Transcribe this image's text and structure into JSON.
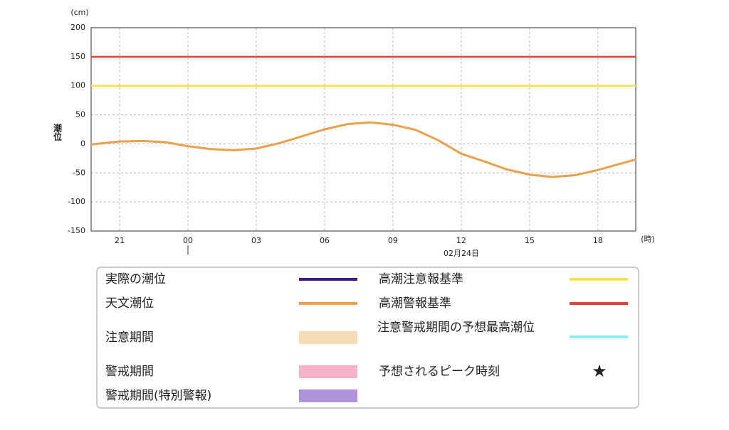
{
  "chart_data": {
    "type": "line",
    "y_unit": "(cm)",
    "x_unit": "(時)",
    "ylabel": "潮位",
    "date_label": "02月24日",
    "xlim": [
      19.75,
      43.66
    ],
    "xticks": [
      21,
      {
        "value": 24,
        "label": "00"
      },
      {
        "value": 27,
        "label": "03"
      },
      {
        "value": 30,
        "label": "06"
      },
      {
        "value": 33,
        "label": "09"
      },
      {
        "value": 36,
        "label": "12"
      },
      {
        "value": 39,
        "label": "15"
      },
      {
        "value": 42,
        "label": "18"
      }
    ],
    "ylim": [
      -150,
      200
    ],
    "yticks": [
      -150,
      -100,
      -50,
      0,
      50,
      100,
      150,
      200
    ],
    "grid": true,
    "x": [
      19.75,
      21,
      22,
      23,
      24,
      25,
      26,
      27,
      28,
      29,
      30,
      31,
      32,
      33,
      34,
      35,
      36,
      37,
      38,
      39,
      40,
      41,
      42,
      43,
      43.66
    ],
    "series": [
      {
        "name": "天文潮位",
        "color": "#eba04a",
        "values": [
          -1,
          4,
          5,
          3,
          -4,
          -9,
          -11,
          -8,
          1,
          13,
          25,
          34,
          37,
          33,
          24,
          6,
          -17,
          -30,
          -44,
          -53,
          -57,
          -54,
          -45,
          -34,
          -27
        ]
      }
    ],
    "hlines": [
      {
        "name": "高潮注意報基準",
        "color": "#f2e34c",
        "value": 100
      },
      {
        "name": "高潮警報基準",
        "color": "#e0452f",
        "value": 150
      }
    ],
    "legend_items": [
      {
        "name": "実際の潮位",
        "color": "#3a1a8c",
        "symbol": "line"
      },
      {
        "name": "注意期間",
        "color": "#f7dcb8",
        "symbol": "band"
      },
      {
        "name": "警戒期間",
        "color": "#f4b3c8",
        "symbol": "band"
      },
      {
        "name": "警戒期間(特別警報)",
        "color": "#ae94dc",
        "symbol": "band"
      },
      {
        "name": "注意警戒期間の予想最高潮位",
        "color": "#7ef0f4",
        "symbol": "line"
      },
      {
        "name": "予想されるピーク時刻",
        "color": "#1a2ee0",
        "symbol": "star"
      }
    ]
  }
}
